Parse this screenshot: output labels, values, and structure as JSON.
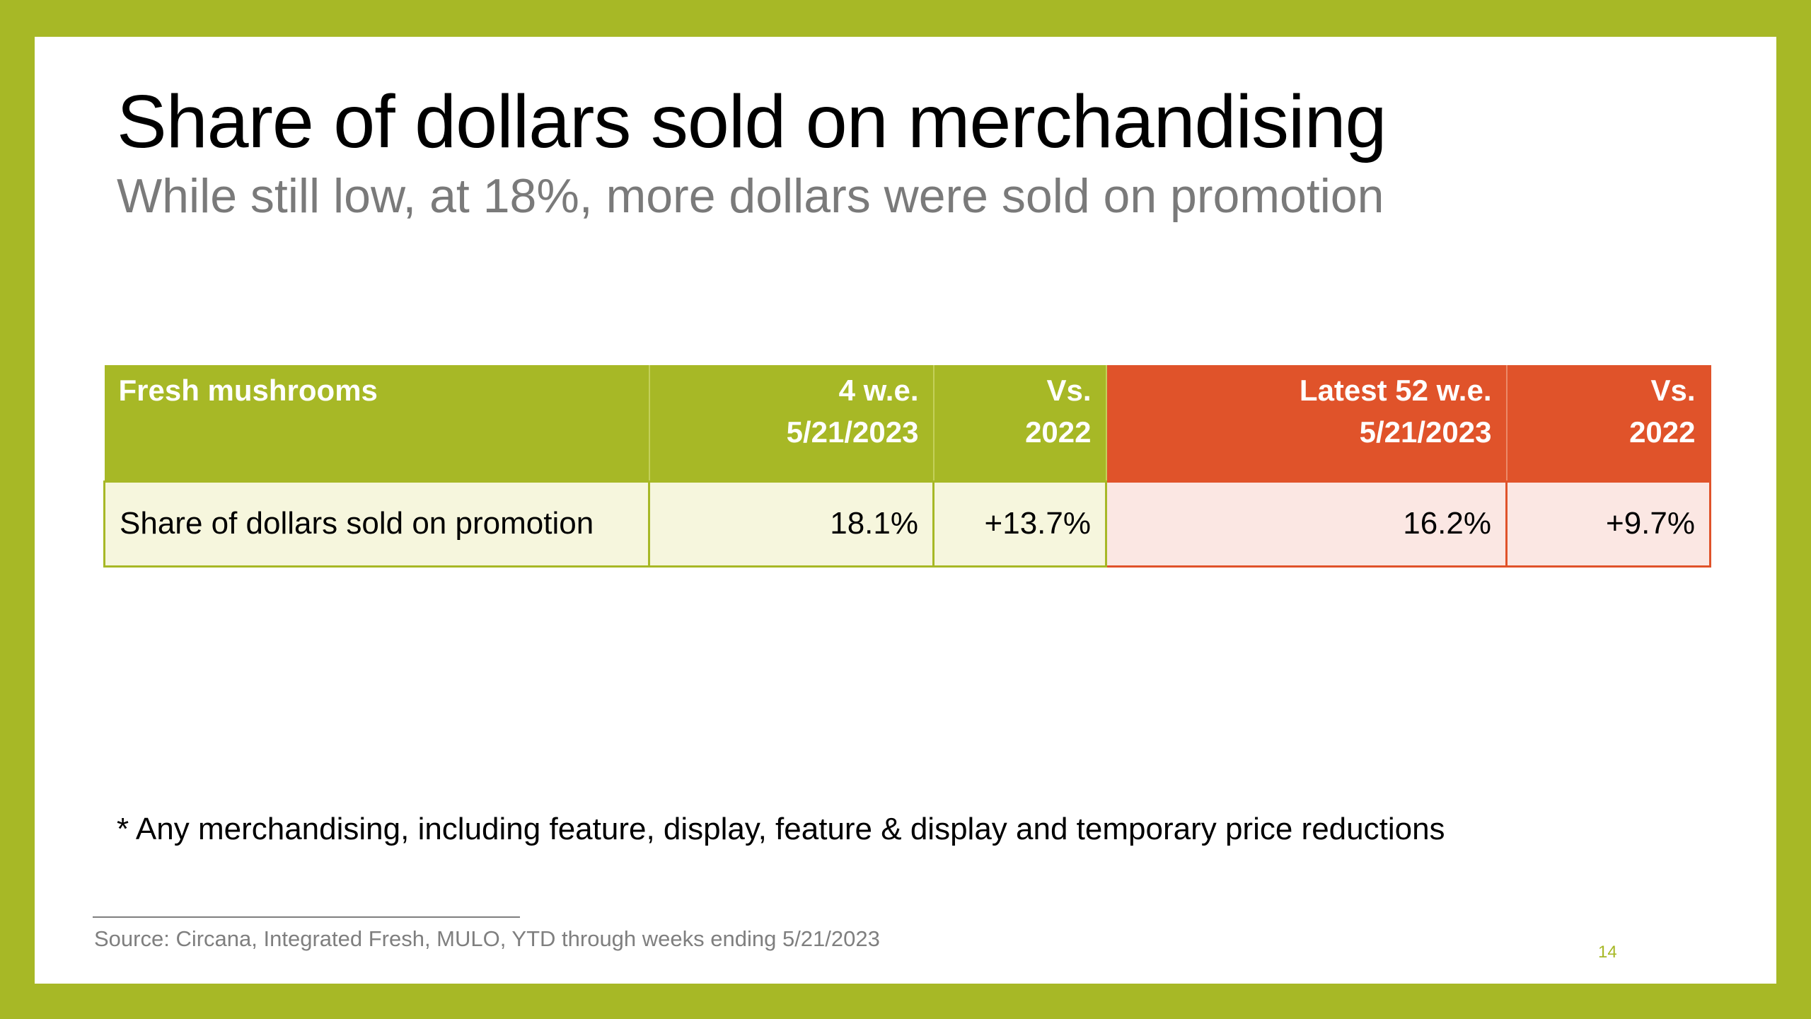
{
  "slide": {
    "title": "Share of dollars sold on merchandising",
    "subtitle": "While still low, at 18%, more dollars were sold on promotion",
    "table": {
      "headers": [
        "Fresh mushrooms",
        "4 w.e.\n5/21/2023",
        "Vs.\n2022",
        "Latest 52 w.e.\n5/21/2023",
        "Vs.\n2022"
      ],
      "rows": [
        [
          "Share of dollars sold on promotion",
          "18.1%",
          "+13.7%",
          "16.2%",
          "+9.7%"
        ]
      ]
    },
    "footnote": "* Any merchandising, including feature, display, feature & display and temporary price reductions",
    "source": "Source: Circana, Integrated Fresh, MULO, YTD through weeks ending 5/21/2023",
    "page_number": "14"
  },
  "colors": {
    "border_green": "#a7b826",
    "header_orange": "#e0532a",
    "cell_green_bg": "#f6f6dd",
    "cell_orange_bg": "#fbe7e3"
  }
}
